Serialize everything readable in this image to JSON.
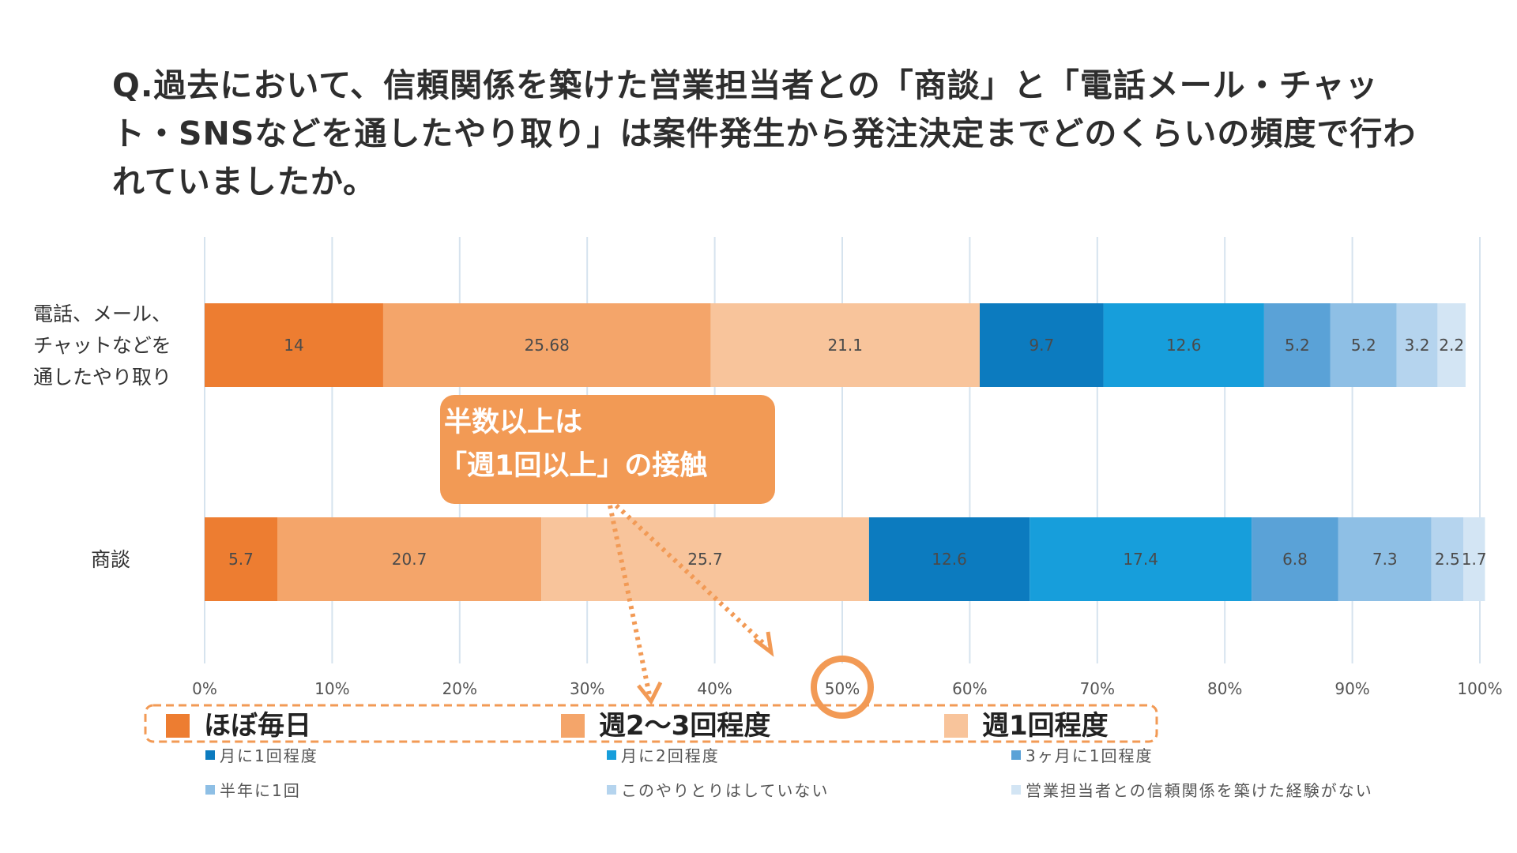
{
  "question": "Q.過去において、信頼関係を築けた営業担当者との「商談」と「電話メール・チャット・SNSなどを通したやり取り」は案件発生から発注決定までどのくらいの頻度で行われていましたか。",
  "chart_data": {
    "type": "bar",
    "orientation": "horizontal",
    "stacked": true,
    "percent_stacked": true,
    "categories": [
      [
        "電話、メール、",
        "チャットなどを",
        "通したやり取り"
      ],
      [
        "商談"
      ]
    ],
    "series": [
      {
        "name": "ほぼ毎日",
        "color": "#ED7D31",
        "values": [
          14,
          5.7
        ],
        "labels": [
          "14",
          "5.7"
        ]
      },
      {
        "name": "週2〜3回程度",
        "color": "#F4A56A",
        "values": [
          25.68,
          20.7
        ],
        "labels": [
          "25.68",
          "20.7"
        ]
      },
      {
        "name": "週1回程度",
        "color": "#F8C49B",
        "values": [
          21.1,
          25.7
        ],
        "labels": [
          "21.1",
          "25.7"
        ]
      },
      {
        "name": "月に1回程度",
        "color": "#0C7BBF",
        "values": [
          9.7,
          12.6
        ],
        "labels": [
          "9.7",
          "12.6"
        ]
      },
      {
        "name": "月に2回程度",
        "color": "#179EDB",
        "values": [
          12.6,
          17.4
        ],
        "labels": [
          "12.6",
          "17.4"
        ]
      },
      {
        "name": "3ヶ月に1回程度",
        "color": "#5AA2D7",
        "values": [
          5.2,
          6.8
        ],
        "labels": [
          "5.2",
          "6.8"
        ]
      },
      {
        "name": "半年に1回",
        "color": "#8EBFE5",
        "values": [
          5.2,
          7.3
        ],
        "labels": [
          "5.2",
          "7.3"
        ]
      },
      {
        "name": "このやりとりはしていない",
        "color": "#B5D4EE",
        "values": [
          3.2,
          2.5
        ],
        "labels": [
          "3.2",
          "2.5"
        ]
      },
      {
        "name": "営業担当者との信頼関係を築けた経験がない",
        "color": "#D3E5F4",
        "values": [
          2.2,
          1.7
        ],
        "labels": [
          "2.2",
          "1.7"
        ]
      }
    ],
    "x_ticks": [
      "0%",
      "10%",
      "20%",
      "30%",
      "40%",
      "50%",
      "60%",
      "70%",
      "80%",
      "90%",
      "100%"
    ],
    "xlim": [
      0,
      100
    ],
    "grid": "vertical",
    "legend": {
      "placement": "bottom",
      "highlighted": [
        "ほぼ毎日",
        "週2〜3回程度",
        "週1回程度"
      ],
      "rows": [
        [
          "月に1回程度",
          "月に2回程度",
          "3ヶ月に1回程度"
        ],
        [
          "半年に1回",
          "このやりとりはしていない",
          "営業担当者との信頼関係を築けた経験がない"
        ]
      ]
    },
    "annotation": {
      "lines": [
        "半数以上は",
        "「週1回以上」の接触"
      ],
      "color": "#F29A55",
      "highlight_tick": "50%"
    }
  }
}
